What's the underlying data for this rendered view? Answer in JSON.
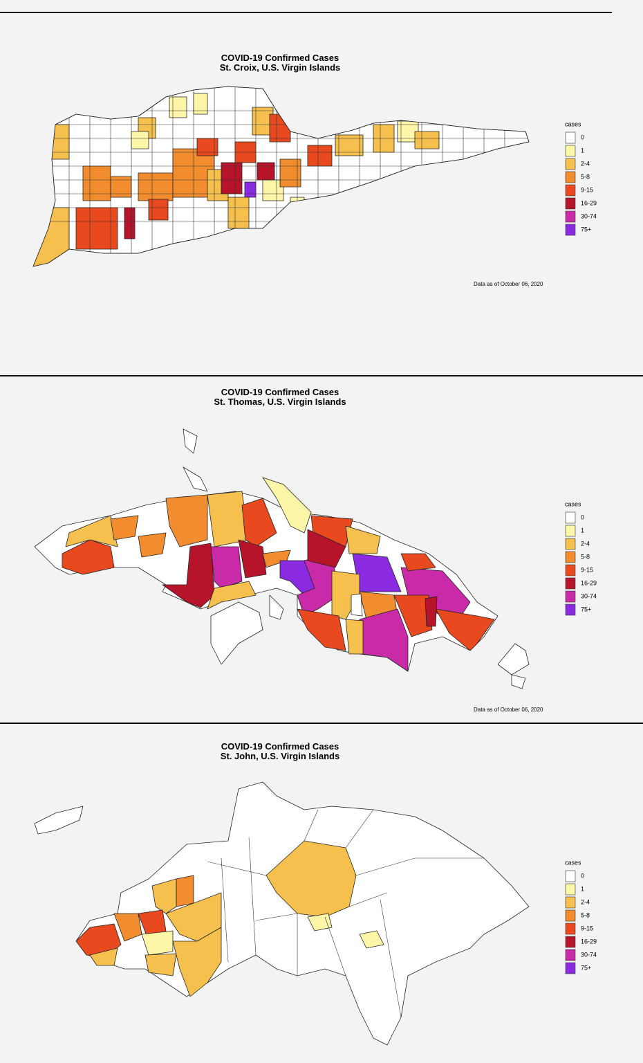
{
  "panels": [
    {
      "title": [
        "COVID-19 Confirmed Cases",
        "St. Croix, U.S. Virgin Islands"
      ],
      "legend": {
        "title": "cases",
        "items": [
          {
            "label": "0",
            "color": "#ffffff"
          },
          {
            "label": "1",
            "color": "#fdf5a8"
          },
          {
            "label": "2-4",
            "color": "#f5c04e"
          },
          {
            "label": "5-8",
            "color": "#f18d2f"
          },
          {
            "label": "9-15",
            "color": "#e8491f"
          },
          {
            "label": "16-29",
            "color": "#b5142a"
          },
          {
            "label": "30-74",
            "color": "#c92aa8"
          },
          {
            "label": "75+",
            "color": "#8a2be2"
          }
        ]
      },
      "note": "Data as of October 06, 2020"
    },
    {
      "title": [
        "COVID-19 Confirmed Cases",
        "St. Thomas, U.S. Virgin Islands"
      ],
      "legend": {
        "title": "cases",
        "items": [
          {
            "label": "0",
            "color": "#ffffff"
          },
          {
            "label": "1",
            "color": "#fdf5a8"
          },
          {
            "label": "2-4",
            "color": "#f5c04e"
          },
          {
            "label": "5-8",
            "color": "#f18d2f"
          },
          {
            "label": "9-15",
            "color": "#e8491f"
          },
          {
            "label": "16-29",
            "color": "#b5142a"
          },
          {
            "label": "30-74",
            "color": "#c92aa8"
          },
          {
            "label": "75+",
            "color": "#8a2be2"
          }
        ]
      },
      "note": "Data as of October 06, 2020"
    },
    {
      "title": [
        "COVID-19 Confirmed Cases",
        "St. John, U.S. Virgin Islands"
      ],
      "legend": {
        "title": "cases",
        "items": [
          {
            "label": "0",
            "color": "#ffffff"
          },
          {
            "label": "1",
            "color": "#fdf5a8"
          },
          {
            "label": "2-4",
            "color": "#f5c04e"
          },
          {
            "label": "5-8",
            "color": "#f18d2f"
          },
          {
            "label": "9-15",
            "color": "#e8491f"
          },
          {
            "label": "16-29",
            "color": "#b5142a"
          },
          {
            "label": "30-74",
            "color": "#c92aa8"
          },
          {
            "label": "75+",
            "color": "#8a2be2"
          }
        ]
      }
    }
  ]
}
